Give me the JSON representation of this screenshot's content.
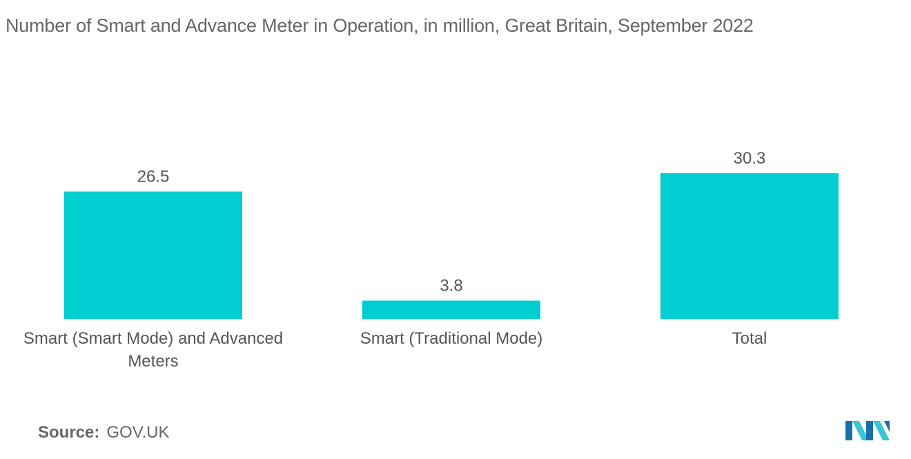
{
  "source": {
    "label": "Source:",
    "value": "GOV.UK"
  },
  "logo": {
    "icon": "mordor-intelligence-logo"
  },
  "colors": {
    "bar": "#00CED1",
    "text": "#555555",
    "title": "#666666",
    "logo_dark": "#1A6FA8",
    "logo_light": "#3BC4D6"
  },
  "chart_data": {
    "type": "bar",
    "title": "Number of Smart and Advance Meter in Operation, in million, Great Britain, September 2022",
    "categories": [
      [
        "Smart (Smart Mode) and Advanced",
        "Meters"
      ],
      [
        "Smart (Traditional Mode)"
      ],
      [
        "Total"
      ]
    ],
    "values": [
      26.5,
      3.8,
      30.3
    ],
    "value_labels": [
      "26.5",
      "3.8",
      "30.3"
    ],
    "xlabel": "",
    "ylabel": "",
    "ylim": [
      0,
      30.3
    ],
    "grid": false,
    "legend": "none"
  }
}
